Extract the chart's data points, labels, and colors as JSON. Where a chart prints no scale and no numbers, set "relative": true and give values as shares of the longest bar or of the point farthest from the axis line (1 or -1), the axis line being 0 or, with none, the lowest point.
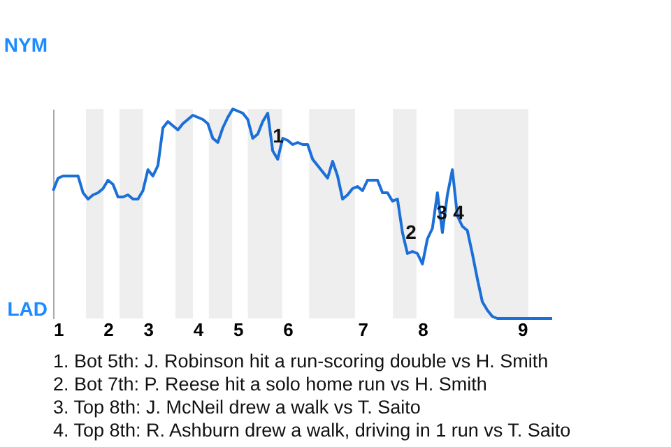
{
  "chart_data": {
    "type": "line",
    "relative": true,
    "categories": [
      null,
      "1",
      null,
      null,
      null,
      null,
      null,
      null,
      null,
      null,
      null,
      "2",
      null,
      null,
      null,
      null,
      null,
      null,
      null,
      "3",
      null,
      null,
      null,
      null,
      null,
      null,
      null,
      null,
      null,
      "4",
      null,
      null,
      null,
      null,
      null,
      null,
      null,
      "5",
      null,
      null,
      null,
      null,
      null,
      null,
      null,
      null,
      null,
      "6",
      null,
      null,
      null,
      null,
      null,
      null,
      null,
      null,
      null,
      null,
      null,
      null,
      null,
      null,
      "7",
      null,
      null,
      null,
      null,
      null,
      null,
      null,
      null,
      null,
      null,
      null,
      "8",
      null,
      null,
      null,
      null,
      null,
      null,
      null,
      null,
      null,
      null,
      null,
      null,
      null,
      null,
      null,
      null,
      null,
      null,
      null,
      "9",
      null,
      null,
      null,
      null,
      null,
      null
    ],
    "series": [
      {
        "color": "#1a6fd8",
        "values": [
          0.61,
          0.67,
          0.68,
          0.68,
          0.68,
          0.68,
          0.6,
          0.57,
          0.59,
          0.6,
          0.62,
          0.66,
          0.64,
          0.58,
          0.58,
          0.59,
          0.57,
          0.57,
          0.61,
          0.71,
          0.68,
          0.73,
          0.91,
          0.94,
          0.92,
          0.9,
          0.93,
          0.95,
          0.97,
          0.96,
          0.95,
          0.93,
          0.86,
          0.84,
          0.91,
          0.96,
          1,
          0.99,
          0.98,
          0.95,
          0.86,
          0.88,
          0.94,
          0.98,
          0.8,
          0.76,
          0.86,
          0.85,
          0.83,
          0.84,
          0.83,
          0.83,
          0.76,
          0.73,
          0.7,
          0.67,
          0.75,
          0.68,
          0.57,
          0.59,
          0.62,
          0.63,
          0.61,
          0.66,
          0.66,
          0.66,
          0.6,
          0.6,
          0.56,
          0.57,
          0.41,
          0.31,
          0.32,
          0.31,
          0.26,
          0.38,
          0.43,
          0.6,
          0.41,
          0.59,
          0.71,
          0.49,
          0.44,
          0.42,
          0.31,
          0.19,
          0.08,
          0.04,
          0.01,
          0,
          0,
          0,
          0,
          0,
          0,
          0,
          0,
          0,
          0,
          0,
          0
        ]
      }
    ],
    "annotations": [
      "NYM",
      "LAD",
      "1",
      "2",
      "3",
      "4",
      "1. Bot 5th: J. Robinson hit a run-scoring double vs H. Smith",
      "2. Bot 7th: P. Reese hit a solo home run vs H. Smith",
      "3. Top 8th: J. McNeil drew a walk vs T. Saito",
      "4. Top 8th: R. Ashburn drew a walk, driving in 1 run vs T. Saito"
    ]
  }
}
